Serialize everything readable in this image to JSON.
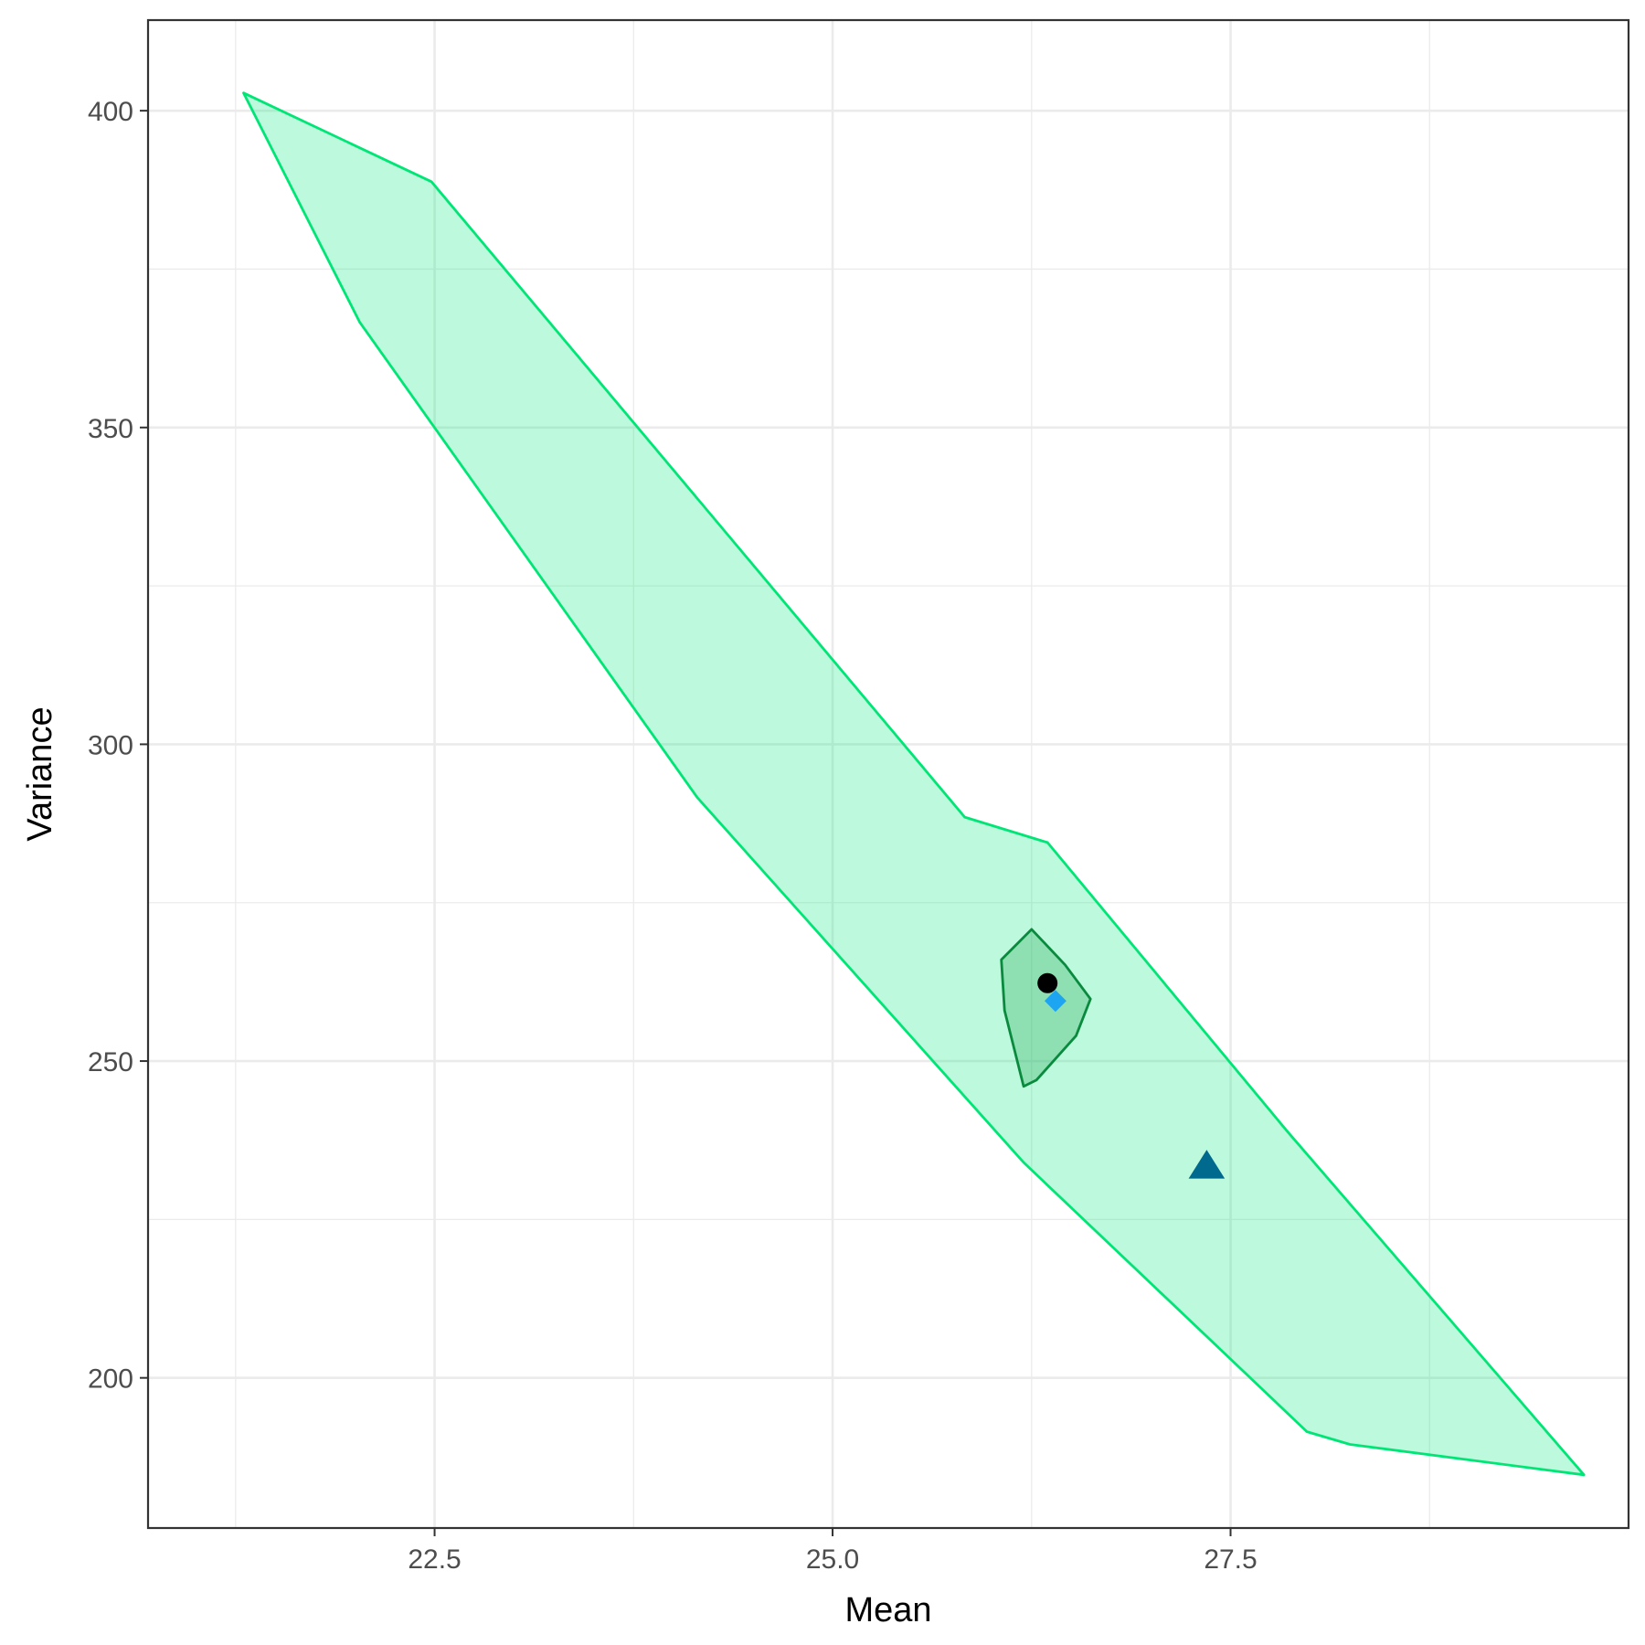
{
  "chart_data": {
    "type": "scatter",
    "xlabel": "Mean",
    "ylabel": "Variance",
    "xlim": [
      20.7,
      30.0
    ],
    "ylim": [
      176.3,
      414.3
    ],
    "x_ticks": [
      22.5,
      25.0,
      27.5
    ],
    "x_tick_labels": [
      "22.5",
      "25.0",
      "27.5"
    ],
    "y_ticks": [
      200,
      250,
      300,
      350,
      400
    ],
    "y_tick_labels": [
      "200",
      "250",
      "300",
      "350",
      "400"
    ],
    "grid": true,
    "legend": "none",
    "regions": [
      {
        "name": "",
        "fill": "#00e676",
        "fill_opacity": 0.26,
        "stroke": "#00e676",
        "points": [
          [
            21.3,
            402.8
          ],
          [
            22.48,
            388.8
          ],
          [
            25.83,
            288.5
          ],
          [
            26.35,
            284.5
          ],
          [
            27.86,
            238.8
          ],
          [
            29.72,
            184.7
          ],
          [
            28.25,
            189.5
          ],
          [
            27.98,
            191.5
          ],
          [
            26.2,
            234.0
          ],
          [
            24.15,
            291.6
          ],
          [
            22.03,
            366.6
          ]
        ]
      },
      {
        "name": "",
        "fill": "#16a34a",
        "fill_opacity": 0.28,
        "stroke": "#0a8a3e",
        "points": [
          [
            26.25,
            270.8
          ],
          [
            26.46,
            265.2
          ],
          [
            26.62,
            259.8
          ],
          [
            26.53,
            254.0
          ],
          [
            26.28,
            247.0
          ],
          [
            26.2,
            246.0
          ],
          [
            26.08,
            258.0
          ],
          [
            26.06,
            266.0
          ]
        ]
      }
    ],
    "points": [
      {
        "name": "",
        "shape": "circle",
        "color": "#000000",
        "x": 26.35,
        "y": 262.3
      },
      {
        "name": "",
        "shape": "diamond",
        "color": "#1ea5f2",
        "x": 26.4,
        "y": 259.5
      },
      {
        "name": "",
        "shape": "triangle",
        "color": "#006a8e",
        "x": 27.35,
        "y": 233.4
      }
    ]
  }
}
